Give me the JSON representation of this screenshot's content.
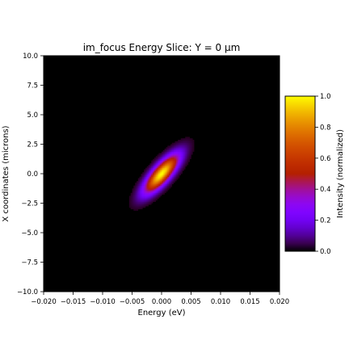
{
  "chart_data": {
    "type": "heatmap",
    "title": "im_focus Energy Slice: Y = 0 μm",
    "xlabel": "Energy (eV)",
    "ylabel": "X coordinates (microns)",
    "xlim": [
      -0.02,
      0.02
    ],
    "ylim": [
      -10,
      10
    ],
    "x_ticks": [
      -0.02,
      -0.015,
      -0.01,
      -0.005,
      0.0,
      0.005,
      0.01,
      0.015,
      0.02
    ],
    "x_tick_labels": [
      "−0.020",
      "−0.015",
      "−0.010",
      "−0.005",
      "0.000",
      "0.005",
      "0.010",
      "0.015",
      "0.020"
    ],
    "y_ticks": [
      10,
      7.5,
      5,
      2.5,
      0,
      -2.5,
      -5,
      -7.5,
      -10
    ],
    "y_tick_labels": [
      "10.0",
      "7.5",
      "5.0",
      "2.5",
      "0.0",
      "−2.5",
      "−5.0",
      "−7.5",
      "−10.0"
    ],
    "colormap": "gnuplot",
    "background_color": "#000000",
    "feature": {
      "shape": "tilted elongated spot",
      "center_energy": 0.0,
      "center_x": 0.0,
      "sigma_energy_along": 0.0008,
      "sigma_x_along": 1.1,
      "correlation_slope_x_per_energy": 700,
      "width_energy": 0.0012,
      "peak_intensity": 1.0
    },
    "colorbar": {
      "label": "Intensity (normalized)",
      "range": [
        0.0,
        1.0
      ],
      "ticks": [
        0.0,
        0.2,
        0.4,
        0.6,
        0.8,
        1.0
      ],
      "tick_labels": [
        "0.0",
        "0.2",
        "0.4",
        "0.6",
        "0.8",
        "1.0"
      ]
    },
    "grid": false
  }
}
